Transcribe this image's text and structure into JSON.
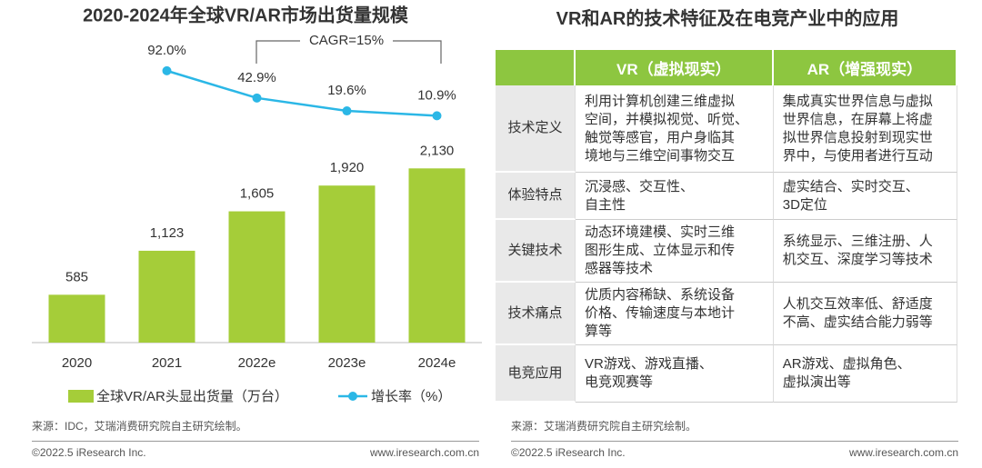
{
  "chart_data": {
    "type": "bar",
    "title": "2020-2024年全球VR/AR市场出货量规模",
    "categories": [
      "2020",
      "2021",
      "2022e",
      "2023e",
      "2024e"
    ],
    "series": [
      {
        "name": "全球VR/AR头显出货量（万台）",
        "type": "bar",
        "color": "#a5cd39",
        "values": [
          585,
          1123,
          1605,
          1920,
          2130
        ],
        "value_labels": [
          "585",
          "1,123",
          "1,605",
          "1,920",
          "2,130"
        ]
      },
      {
        "name": "增长率（%）",
        "type": "line",
        "axis": "y2",
        "color": "#2bb7e6",
        "values": [
          null,
          92.0,
          42.9,
          19.6,
          10.9
        ],
        "value_labels": [
          null,
          "92.0%",
          "42.9%",
          "19.6%",
          "10.9%"
        ]
      }
    ],
    "ylim": [
      0,
      2400
    ],
    "y2lim": [
      0,
      100
    ],
    "annotations": [
      "CAGR=15%"
    ],
    "source": "来源：IDC，艾瑞消费研究院自主研究绘制。"
  },
  "table": {
    "title": "VR和AR的技术特征及在电竞产业中的应用",
    "header": [
      "VR（虚拟现实）",
      "AR（增强现实）"
    ],
    "rows": [
      {
        "label": "技术定义",
        "cells": [
          [
            "利用计算机创建三维虚拟",
            "空间，并模拟视觉、听觉、",
            "触觉等感官，用户身临其",
            "境地与三维空间事物交互"
          ],
          [
            "集成真实世界信息与虚拟",
            "世界信息，在屏幕上将虚",
            "拟世界信息投射到现实世",
            "界中，与使用者进行互动"
          ]
        ]
      },
      {
        "label": "体验特点",
        "cells": [
          [
            "沉浸感、交互性、",
            "自主性"
          ],
          [
            "虚实结合、实时交互、",
            "3D定位"
          ]
        ]
      },
      {
        "label": "关键技术",
        "cells": [
          [
            "动态环境建模、实时三维",
            "图形生成、立体显示和传",
            "感器等技术"
          ],
          [
            "系统显示、三维注册、人",
            "机交互、深度学习等技术"
          ]
        ]
      },
      {
        "label": "技术痛点",
        "cells": [
          [
            "优质内容稀缺、系统设备",
            "价格、传输速度与本地计",
            "算等"
          ],
          [
            "人机交互效率低、舒适度",
            "不高、虚实结合能力弱等"
          ]
        ]
      },
      {
        "label": "电竞应用",
        "cells": [
          [
            "VR游戏、游戏直播、",
            "电竞观赛等"
          ],
          [
            "AR游戏、虚拟角色、",
            "虚拟演出等"
          ]
        ]
      }
    ],
    "source": "来源：艾瑞消费研究院自主研究绘制。"
  },
  "footer": {
    "copyright": "©2022.5 iResearch Inc.",
    "url": "www.iresearch.com.cn"
  }
}
